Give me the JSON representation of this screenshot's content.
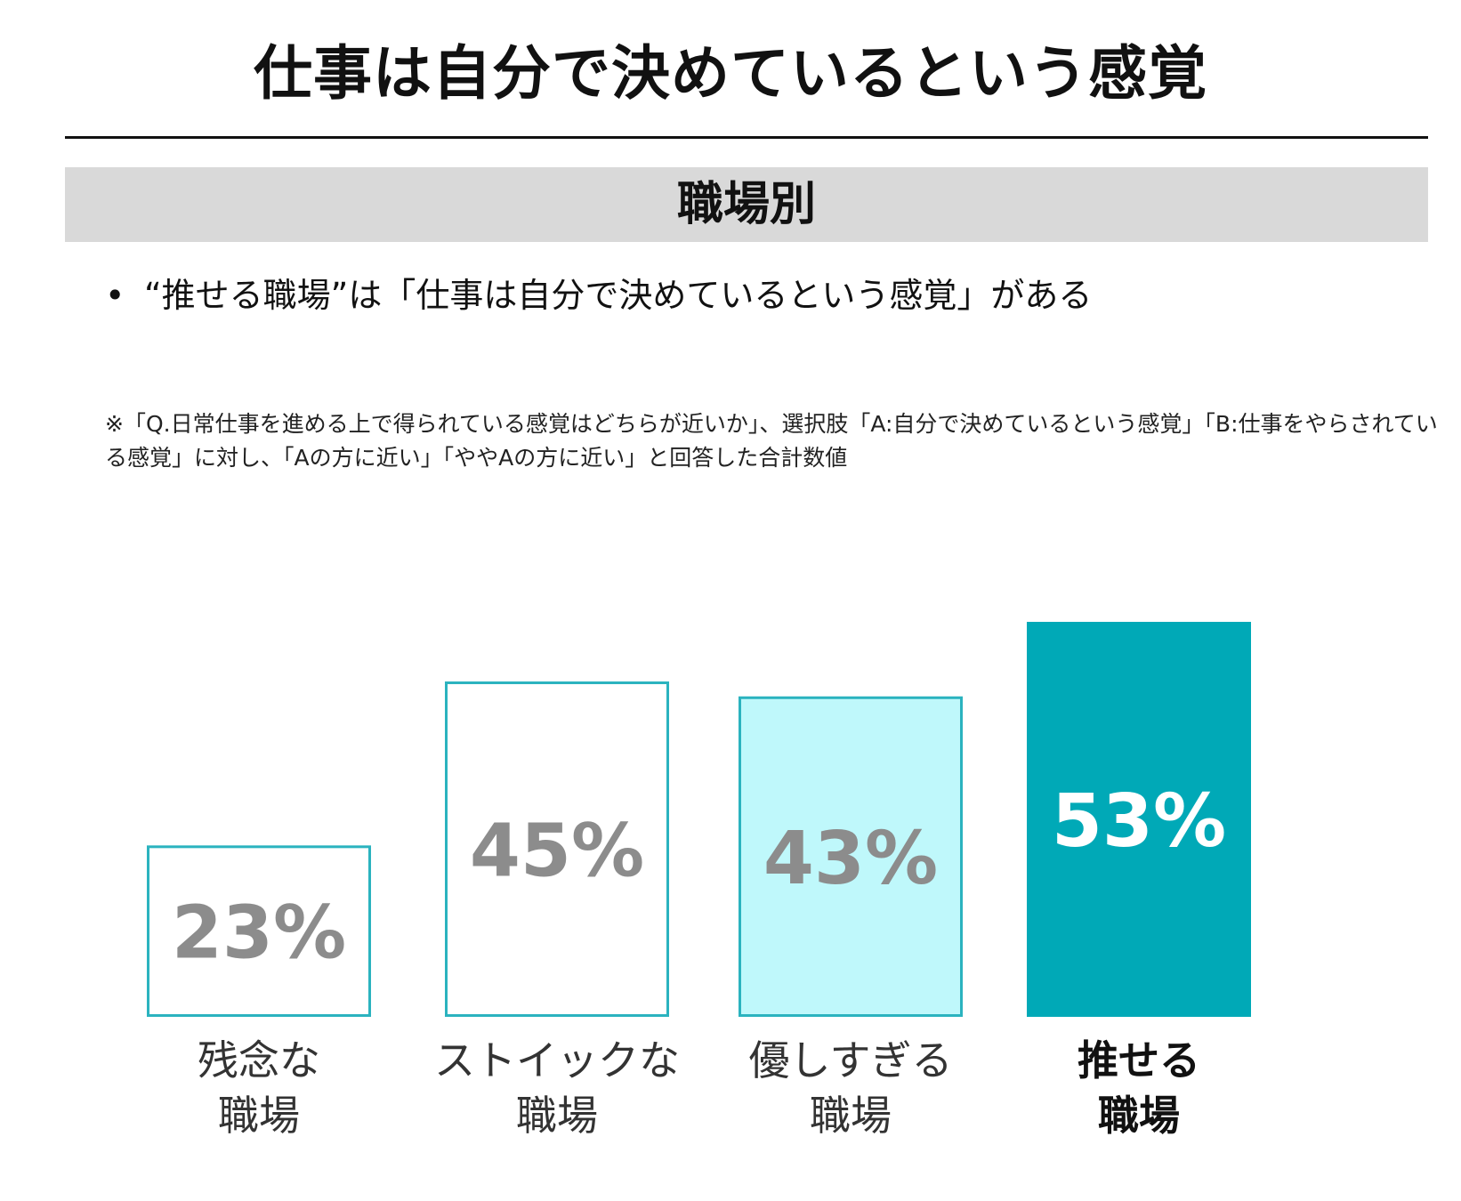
{
  "page": {
    "title": "仕事は自分で決めているという感覚",
    "section": "職場別",
    "bullet": "“推せる職場”は「仕事は自分で決めているという感覚」がある",
    "note": "※「Q.日常仕事を進める上で得られている感覚はどちらが近いか」、選択肢「A:自分で決めているという感覚」「B:仕事をやらされている感覚」に対し、「Aの方に近い」「ややAの方に近い」と回答した合計数値"
  },
  "chart_data": {
    "type": "bar",
    "categories": [
      [
        "残念な",
        "職場"
      ],
      [
        "ストイックな",
        "職場"
      ],
      [
        "優しすぎる",
        "職場"
      ],
      [
        "推せる",
        "職場"
      ]
    ],
    "values": [
      23,
      45,
      43,
      53
    ],
    "value_labels": [
      "23%",
      "45%",
      "43%",
      "53%"
    ],
    "unit": "%",
    "ylim": [
      0,
      53
    ],
    "grid": false,
    "legend": "none",
    "styles": [
      {
        "fill": "#ffffff",
        "stroke": "#2bb3bf",
        "label_color": "#8c8c8c",
        "category_weight": "normal"
      },
      {
        "fill": "#ffffff",
        "stroke": "#2bb3bf",
        "label_color": "#8c8c8c",
        "category_weight": "normal"
      },
      {
        "fill": "#bff8fb",
        "stroke": "#2bb3bf",
        "label_color": "#8c8c8c",
        "category_weight": "normal"
      },
      {
        "fill": "#00a9b7",
        "stroke": "#00a9b7",
        "label_color": "#ffffff",
        "category_weight": "bold"
      }
    ]
  }
}
